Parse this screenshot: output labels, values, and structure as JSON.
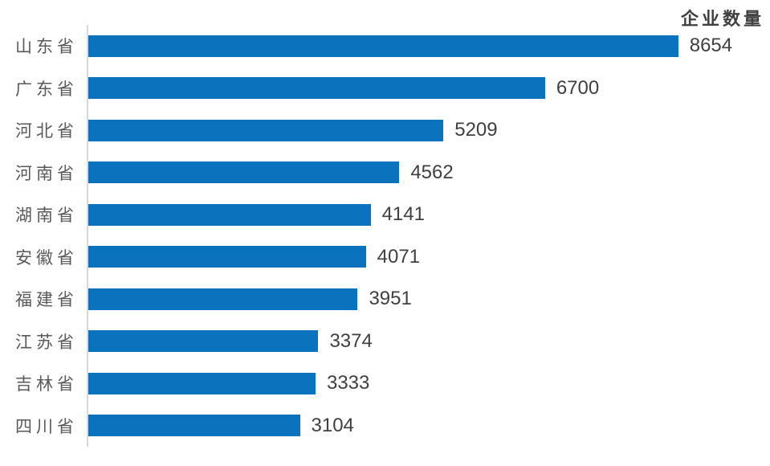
{
  "chart_data": {
    "type": "bar",
    "orientation": "horizontal",
    "title": "企业数量",
    "categories": [
      "山东省",
      "广东省",
      "河北省",
      "河南省",
      "湖南省",
      "安徽省",
      "福建省",
      "江苏省",
      "吉林省",
      "四川省"
    ],
    "values": [
      8654,
      6700,
      5209,
      4562,
      4141,
      4071,
      3951,
      3374,
      3333,
      3104
    ],
    "xlabel": "",
    "ylabel": "",
    "axis_range": [
      0,
      10000
    ],
    "grid": false,
    "legend_position": "none",
    "data_labels_shown": true,
    "colors": {
      "bar": "#0B72BD",
      "category_label": "#595959",
      "value_label": "#404040",
      "title": "#404040",
      "axis_line": "#D9D9D9",
      "background": "#FFFFFF"
    }
  }
}
